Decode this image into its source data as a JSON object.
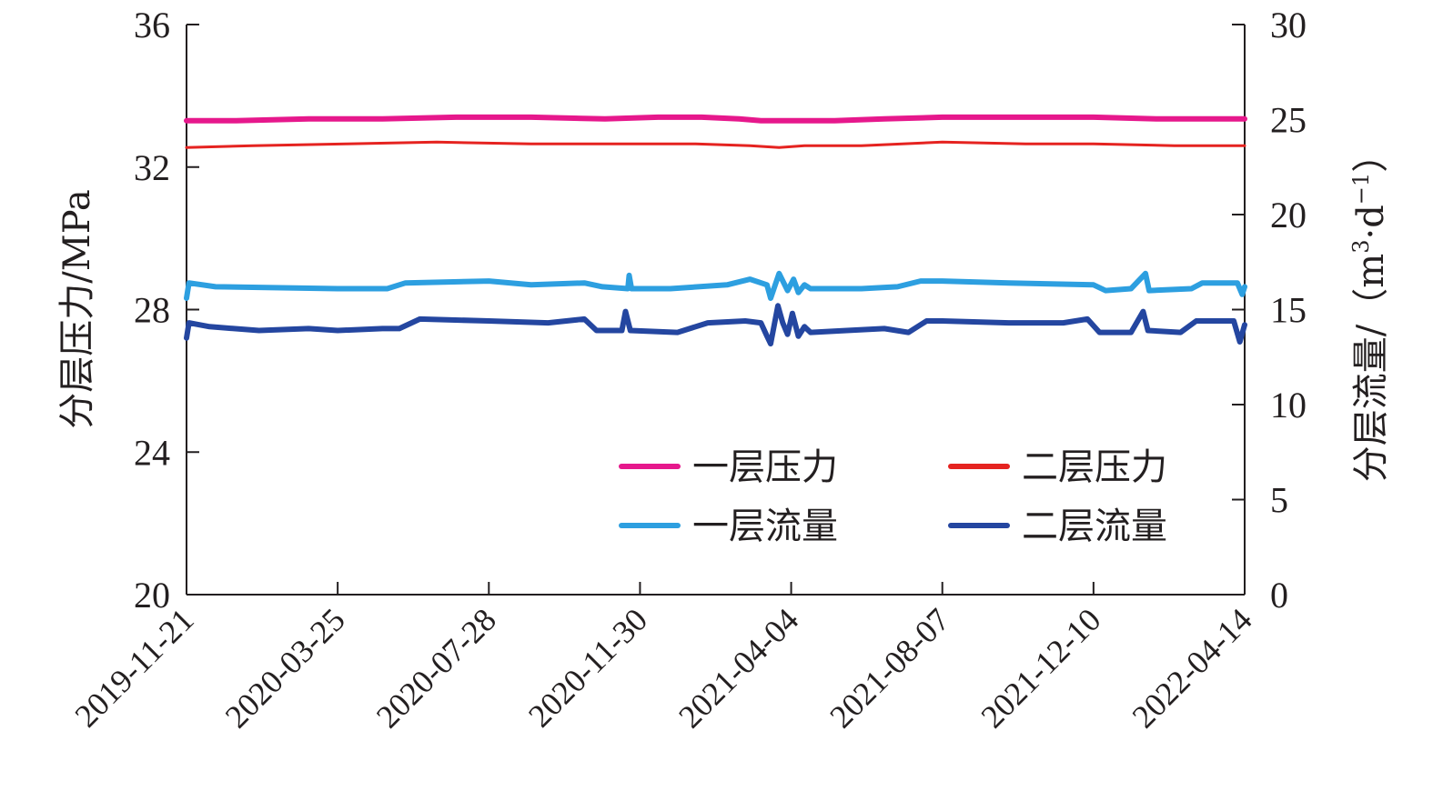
{
  "chart_data": {
    "type": "line",
    "x_type": "date",
    "x_ticks": [
      "2019-11-21",
      "2020-03-25",
      "2020-07-28",
      "2020-11-30",
      "2021-04-04",
      "2021-08-07",
      "2021-12-10",
      "2022-04-14"
    ],
    "xlim": [
      "2019-11-21",
      "2022-04-14"
    ],
    "ylabel_left": "分层压力/MPa",
    "ylim_left": [
      20,
      36
    ],
    "yticks_left": [
      20,
      24,
      28,
      32,
      36
    ],
    "ylabel_right_prefix": "分层流量/（m",
    "ylabel_right_sup1": "3",
    "ylabel_right_mid": "·d",
    "ylabel_right_sup2": "−1",
    "ylabel_right_suffix": "）",
    "ylim_right": [
      0,
      30
    ],
    "yticks_right": [
      0,
      5,
      10,
      15,
      20,
      25,
      30
    ],
    "grid": false,
    "legend_position": "lower-right",
    "series": [
      {
        "name": "一层压力",
        "axis": "left",
        "color": "#e6188c",
        "stroke_width": 6,
        "points": [
          [
            "2019-11-21",
            33.3
          ],
          [
            "2020-01-01",
            33.3
          ],
          [
            "2020-03-01",
            33.35
          ],
          [
            "2020-05-01",
            33.35
          ],
          [
            "2020-07-01",
            33.4
          ],
          [
            "2020-09-01",
            33.4
          ],
          [
            "2020-11-01",
            33.35
          ],
          [
            "2020-12-15",
            33.4
          ],
          [
            "2021-01-20",
            33.4
          ],
          [
            "2021-02-20",
            33.35
          ],
          [
            "2021-03-10",
            33.3
          ],
          [
            "2021-04-10",
            33.3
          ],
          [
            "2021-05-10",
            33.3
          ],
          [
            "2021-06-20",
            33.35
          ],
          [
            "2021-08-07",
            33.4
          ],
          [
            "2021-10-01",
            33.4
          ],
          [
            "2021-12-10",
            33.4
          ],
          [
            "2022-02-01",
            33.35
          ],
          [
            "2022-04-14",
            33.35
          ]
        ]
      },
      {
        "name": "二层压力",
        "axis": "left",
        "color": "#e52320",
        "stroke_width": 3,
        "points": [
          [
            "2019-11-21",
            32.55
          ],
          [
            "2020-01-15",
            32.6
          ],
          [
            "2020-04-01",
            32.65
          ],
          [
            "2020-06-15",
            32.7
          ],
          [
            "2020-09-01",
            32.65
          ],
          [
            "2020-11-15",
            32.65
          ],
          [
            "2021-01-15",
            32.65
          ],
          [
            "2021-03-01",
            32.6
          ],
          [
            "2021-03-25",
            32.55
          ],
          [
            "2021-04-15",
            32.6
          ],
          [
            "2021-06-01",
            32.6
          ],
          [
            "2021-08-07",
            32.7
          ],
          [
            "2021-10-15",
            32.65
          ],
          [
            "2021-12-10",
            32.65
          ],
          [
            "2022-02-15",
            32.6
          ],
          [
            "2022-04-14",
            32.6
          ]
        ]
      },
      {
        "name": "一层流量",
        "axis": "right",
        "color": "#2d9fe0",
        "stroke_width": 6,
        "points": [
          [
            "2019-11-21",
            15.6
          ],
          [
            "2019-11-23",
            16.4
          ],
          [
            "2019-12-15",
            16.2
          ],
          [
            "2020-03-25",
            16.1
          ],
          [
            "2020-04-15",
            16.1
          ],
          [
            "2020-05-05",
            16.1
          ],
          [
            "2020-05-20",
            16.4
          ],
          [
            "2020-07-28",
            16.5
          ],
          [
            "2020-09-01",
            16.3
          ],
          [
            "2020-10-15",
            16.4
          ],
          [
            "2020-10-30",
            16.2
          ],
          [
            "2020-11-20",
            16.1
          ],
          [
            "2020-11-21",
            16.8
          ],
          [
            "2020-11-23",
            16.1
          ],
          [
            "2020-12-25",
            16.1
          ],
          [
            "2021-02-10",
            16.3
          ],
          [
            "2021-03-01",
            16.6
          ],
          [
            "2021-03-15",
            16.3
          ],
          [
            "2021-03-18",
            15.6
          ],
          [
            "2021-03-25",
            16.9
          ],
          [
            "2021-04-01",
            16.0
          ],
          [
            "2021-04-06",
            16.6
          ],
          [
            "2021-04-10",
            15.9
          ],
          [
            "2021-04-15",
            16.3
          ],
          [
            "2021-04-20",
            16.1
          ],
          [
            "2021-06-01",
            16.1
          ],
          [
            "2021-07-01",
            16.2
          ],
          [
            "2021-07-20",
            16.5
          ],
          [
            "2021-08-07",
            16.5
          ],
          [
            "2021-10-01",
            16.4
          ],
          [
            "2021-12-10",
            16.3
          ],
          [
            "2021-12-20",
            16.0
          ],
          [
            "2022-01-10",
            16.1
          ],
          [
            "2022-01-22",
            16.9
          ],
          [
            "2022-01-25",
            16.0
          ],
          [
            "2022-03-01",
            16.1
          ],
          [
            "2022-03-10",
            16.4
          ],
          [
            "2022-04-08",
            16.4
          ],
          [
            "2022-04-12",
            15.8
          ],
          [
            "2022-04-14",
            16.2
          ]
        ]
      },
      {
        "name": "二层流量",
        "axis": "right",
        "color": "#2446a0",
        "stroke_width": 6,
        "points": [
          [
            "2019-11-21",
            13.5
          ],
          [
            "2019-11-23",
            14.3
          ],
          [
            "2019-12-10",
            14.1
          ],
          [
            "2020-01-20",
            13.9
          ],
          [
            "2020-03-01",
            14.0
          ],
          [
            "2020-03-25",
            13.9
          ],
          [
            "2020-05-01",
            14.0
          ],
          [
            "2020-05-15",
            14.0
          ],
          [
            "2020-06-01",
            14.5
          ],
          [
            "2020-07-28",
            14.4
          ],
          [
            "2020-09-15",
            14.3
          ],
          [
            "2020-10-15",
            14.5
          ],
          [
            "2020-10-25",
            13.9
          ],
          [
            "2020-11-15",
            13.9
          ],
          [
            "2020-11-18",
            14.9
          ],
          [
            "2020-11-22",
            13.9
          ],
          [
            "2020-12-31",
            13.8
          ],
          [
            "2021-01-25",
            14.3
          ],
          [
            "2021-02-25",
            14.4
          ],
          [
            "2021-03-10",
            14.3
          ],
          [
            "2021-03-15",
            13.6
          ],
          [
            "2021-03-18",
            13.2
          ],
          [
            "2021-03-24",
            15.2
          ],
          [
            "2021-03-28",
            14.3
          ],
          [
            "2021-04-01",
            13.7
          ],
          [
            "2021-04-05",
            14.8
          ],
          [
            "2021-04-10",
            13.6
          ],
          [
            "2021-04-15",
            14.1
          ],
          [
            "2021-04-20",
            13.8
          ],
          [
            "2021-05-20",
            13.9
          ],
          [
            "2021-06-20",
            14.0
          ],
          [
            "2021-07-10",
            13.8
          ],
          [
            "2021-07-25",
            14.4
          ],
          [
            "2021-08-07",
            14.4
          ],
          [
            "2021-10-01",
            14.3
          ],
          [
            "2021-11-15",
            14.3
          ],
          [
            "2021-12-05",
            14.5
          ],
          [
            "2021-12-15",
            13.8
          ],
          [
            "2022-01-10",
            13.8
          ],
          [
            "2022-01-20",
            14.9
          ],
          [
            "2022-01-24",
            13.9
          ],
          [
            "2022-02-20",
            13.8
          ],
          [
            "2022-03-05",
            14.4
          ],
          [
            "2022-04-05",
            14.4
          ],
          [
            "2022-04-10",
            13.3
          ],
          [
            "2022-04-14",
            14.2
          ]
        ]
      }
    ]
  }
}
